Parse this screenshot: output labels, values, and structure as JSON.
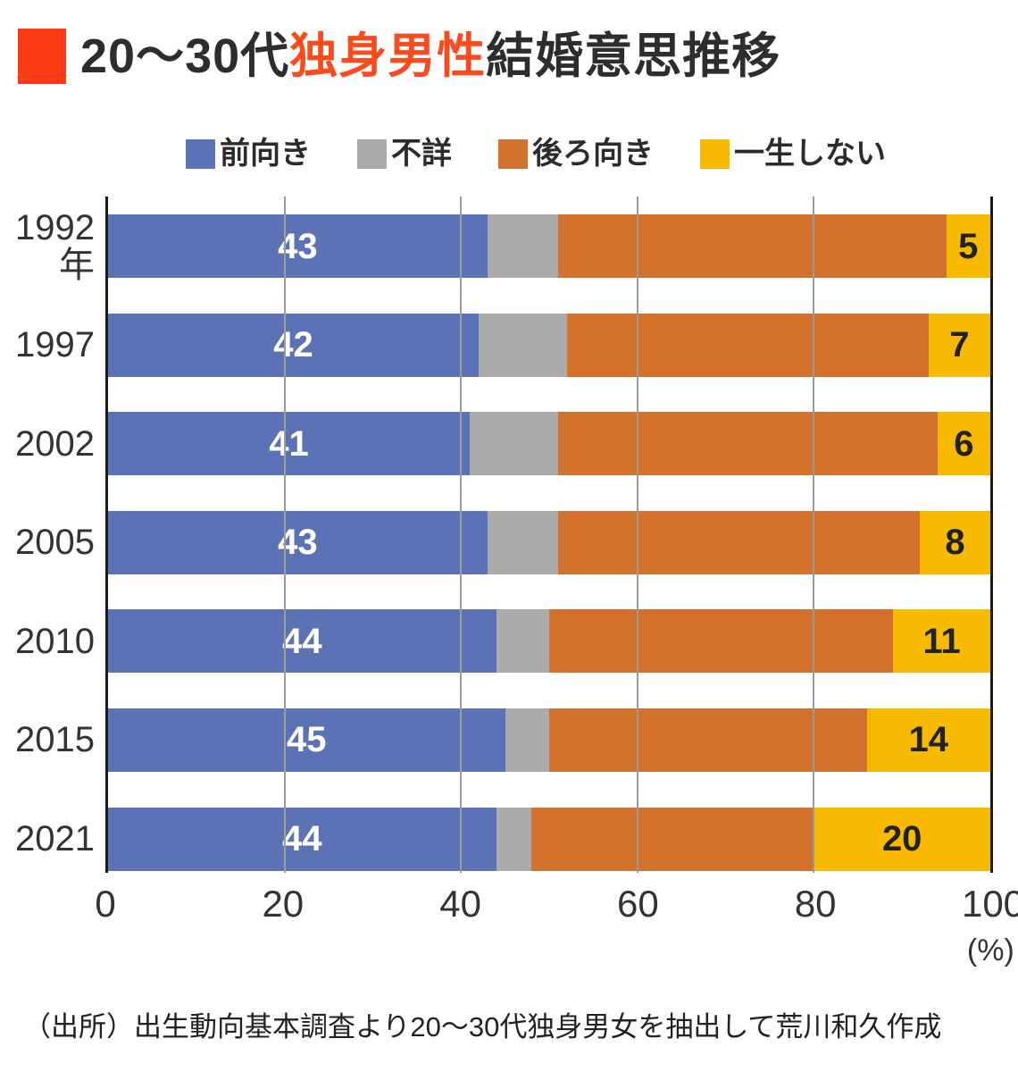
{
  "title": {
    "prefix": "20～30代",
    "accent": "独身男性",
    "suffix": "結婚意思推移",
    "accent_color": "#f94b1d",
    "marker_color": "#fb3b15"
  },
  "chart_data": {
    "type": "bar",
    "stacked": true,
    "orientation": "horizontal",
    "categories": [
      "1992年",
      "1997",
      "2002",
      "2005",
      "2010",
      "2015",
      "2021"
    ],
    "category_display": [
      "1992\n年",
      "1997",
      "2002",
      "2005",
      "2010",
      "2015",
      "2021"
    ],
    "series": [
      {
        "key": "positive",
        "name": "前向き",
        "color": "#5b73b5",
        "values": [
          43,
          42,
          41,
          43,
          44,
          45,
          44
        ],
        "show_labels": true,
        "label_color": "#ffffff"
      },
      {
        "key": "unknown",
        "name": "不詳",
        "color": "#ababab",
        "values": [
          8,
          10,
          10,
          8,
          6,
          5,
          4
        ],
        "show_labels": false,
        "label_color": "#222222"
      },
      {
        "key": "negative",
        "name": "後ろ向き",
        "color": "#d3722c",
        "values": [
          44,
          41,
          43,
          41,
          39,
          36,
          32
        ],
        "show_labels": false,
        "label_color": "#222222"
      },
      {
        "key": "never",
        "name": "一生しない",
        "color": "#f7ba00",
        "values": [
          5,
          7,
          6,
          8,
          11,
          14,
          20
        ],
        "show_labels": true,
        "label_color": "#222222"
      }
    ],
    "xlim": [
      0,
      100
    ],
    "x_ticks": [
      0,
      20,
      40,
      60,
      80,
      100
    ],
    "x_unit": "(%)",
    "grid": true,
    "legend_position": "top"
  },
  "source": "（出所）出生動向基本調査より20～30代独身男女を抽出して荒川和久作成"
}
